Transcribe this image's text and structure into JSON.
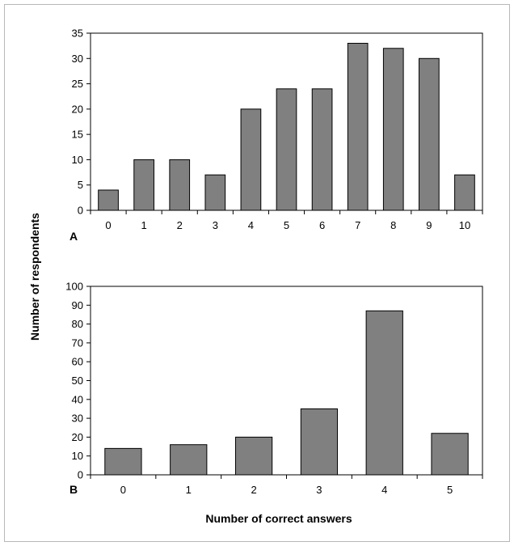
{
  "frame_color": "#b8b8b8",
  "bar_color": "#808080",
  "bar_stroke": "#000000",
  "ylabel": "Number of respondents",
  "xlabel": "Number of correct answers",
  "chart_data": [
    {
      "type": "bar",
      "panel_label": "A",
      "categories": [
        "0",
        "1",
        "2",
        "3",
        "4",
        "5",
        "6",
        "7",
        "8",
        "9",
        "10"
      ],
      "values": [
        4,
        10,
        10,
        7,
        20,
        24,
        24,
        33,
        32,
        30,
        7
      ],
      "ylim": [
        0,
        35
      ],
      "yticks": [
        0,
        5,
        10,
        15,
        20,
        25,
        30,
        35
      ],
      "ytick_labels": [
        "0",
        "5",
        "10",
        "15",
        "20",
        "25",
        "30",
        "35"
      ],
      "grid": false,
      "legend": false
    },
    {
      "type": "bar",
      "panel_label": "B",
      "categories": [
        "0",
        "1",
        "2",
        "3",
        "4",
        "5"
      ],
      "values": [
        14,
        16,
        20,
        35,
        87,
        22
      ],
      "ylim": [
        0,
        100
      ],
      "yticks": [
        0,
        10,
        20,
        30,
        40,
        50,
        60,
        70,
        80,
        90,
        100
      ],
      "ytick_labels": [
        "0",
        "10",
        "20",
        "30",
        "40",
        "50",
        "60",
        "70",
        "80",
        "90",
        "100"
      ],
      "grid": false,
      "legend": false
    }
  ]
}
